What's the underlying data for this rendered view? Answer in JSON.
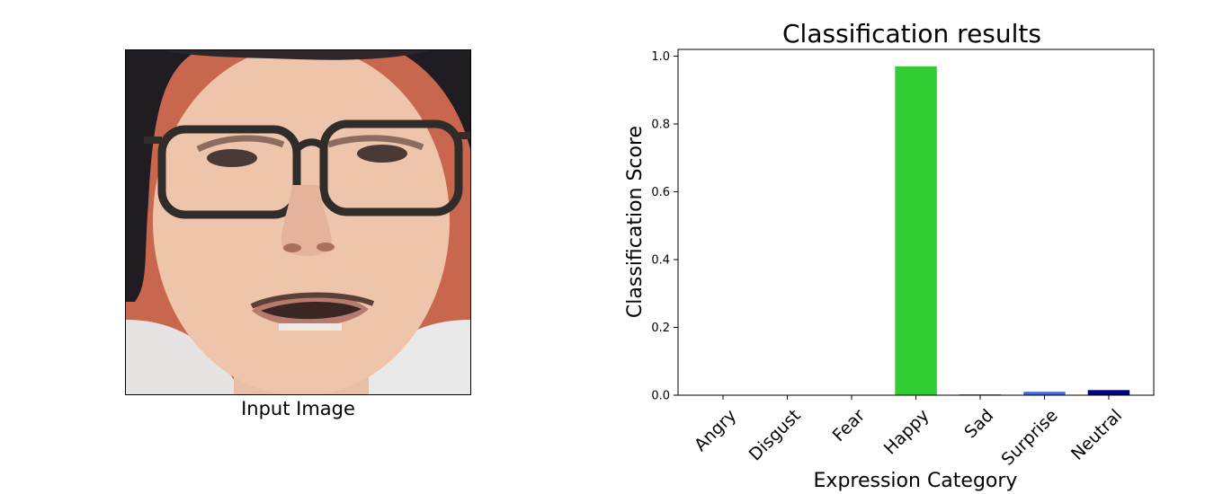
{
  "image_panel": {
    "caption": "Input Image",
    "photo": "face-with-glasses",
    "colors": {
      "background": "#c8674e",
      "skin": "#eec4aa",
      "hair": "#1f1d22",
      "glasses": "#2f2c2a",
      "lips": "#b77a6c",
      "shirt": "#e9e9ea"
    }
  },
  "chart_data": {
    "type": "bar",
    "title": "Classification results",
    "xlabel": "Expression Category",
    "ylabel": "Classification Score",
    "categories": [
      "Angry",
      "Disgust",
      "Fear",
      "Happy",
      "Sad",
      "Surprise",
      "Neutral"
    ],
    "values": [
      0.0,
      0.0,
      0.0,
      0.97,
      0.002,
      0.01,
      0.015
    ],
    "colors": [
      "#ff0000",
      "#008000",
      "#ffa500",
      "#32cd32",
      "#006400",
      "#4169e1",
      "#000080"
    ],
    "ylim": [
      0,
      1.02
    ],
    "yticks": [
      "0.0",
      "0.2",
      "0.4",
      "0.6",
      "0.8",
      "1.0"
    ],
    "grid": false,
    "legend": "none"
  }
}
